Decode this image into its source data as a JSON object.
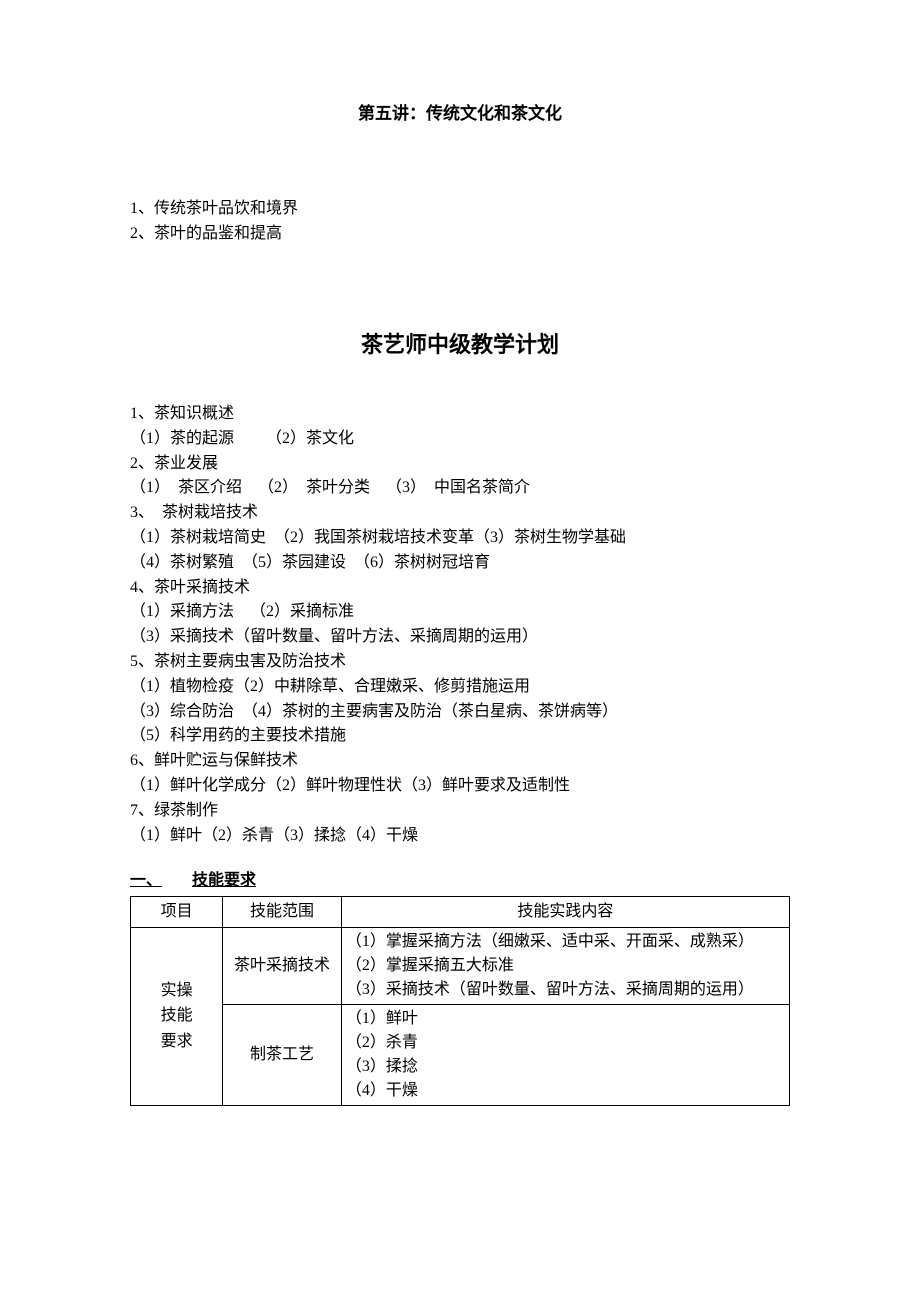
{
  "lecture_title": "第五讲：传统文化和茶文化",
  "intro": [
    "1、传统茶叶品饮和境界",
    "2、茶叶的品鉴和提高"
  ],
  "main_title": "茶艺师中级教学计划",
  "outline": [
    "1、茶知识概述",
    "（1）茶的起源  （2）茶文化",
    "2、茶业发展",
    "（1） 茶区介绍 （2） 茶叶分类 （3） 中国名茶简介",
    "3、 茶树栽培技术",
    "（1）茶树栽培简史 （2）我国茶树栽培技术变革（3）茶树生物学基础",
    "（4）茶树繁殖 （5）茶园建设 （6）茶树树冠培育",
    "4、茶叶采摘技术",
    "（1）采摘方法 （2）采摘标准",
    "（3）采摘技术（留叶数量、留叶方法、采摘周期的运用）",
    "5、茶树主要病虫害及防治技术",
    "（1）植物检疫（2）中耕除草、合理嫩采、修剪措施运用",
    "（3）综合防治 （4）茶树的主要病害及防治（茶白星病、茶饼病等）",
    "（5）科学用药的主要技术措施",
    "6、鲜叶贮运与保鲜技术",
    "（1）鲜叶化学成分（2）鲜叶物理性状（3）鲜叶要求及适制性",
    "7、绿茶制作",
    "（1）鲜叶（2）杀青（3）揉捻（4）干燥"
  ],
  "section": {
    "num": "一、",
    "title": "技能要求"
  },
  "table": {
    "headers": {
      "project": "项目",
      "scope": "技能范围",
      "content": "技能实践内容"
    },
    "project": "实操\n技能\n要求",
    "rows": [
      {
        "scope": "茶叶采摘技术",
        "content": "（1）掌握采摘方法（细嫩采、适中采、开面采、成熟采）\n（2）掌握采摘五大标准\n（3）采摘技术（留叶数量、留叶方法、采摘周期的运用）"
      },
      {
        "scope": "制茶工艺",
        "content": "（1）鲜叶\n（2）杀青\n（3）揉捻\n（4）干燥"
      }
    ]
  }
}
